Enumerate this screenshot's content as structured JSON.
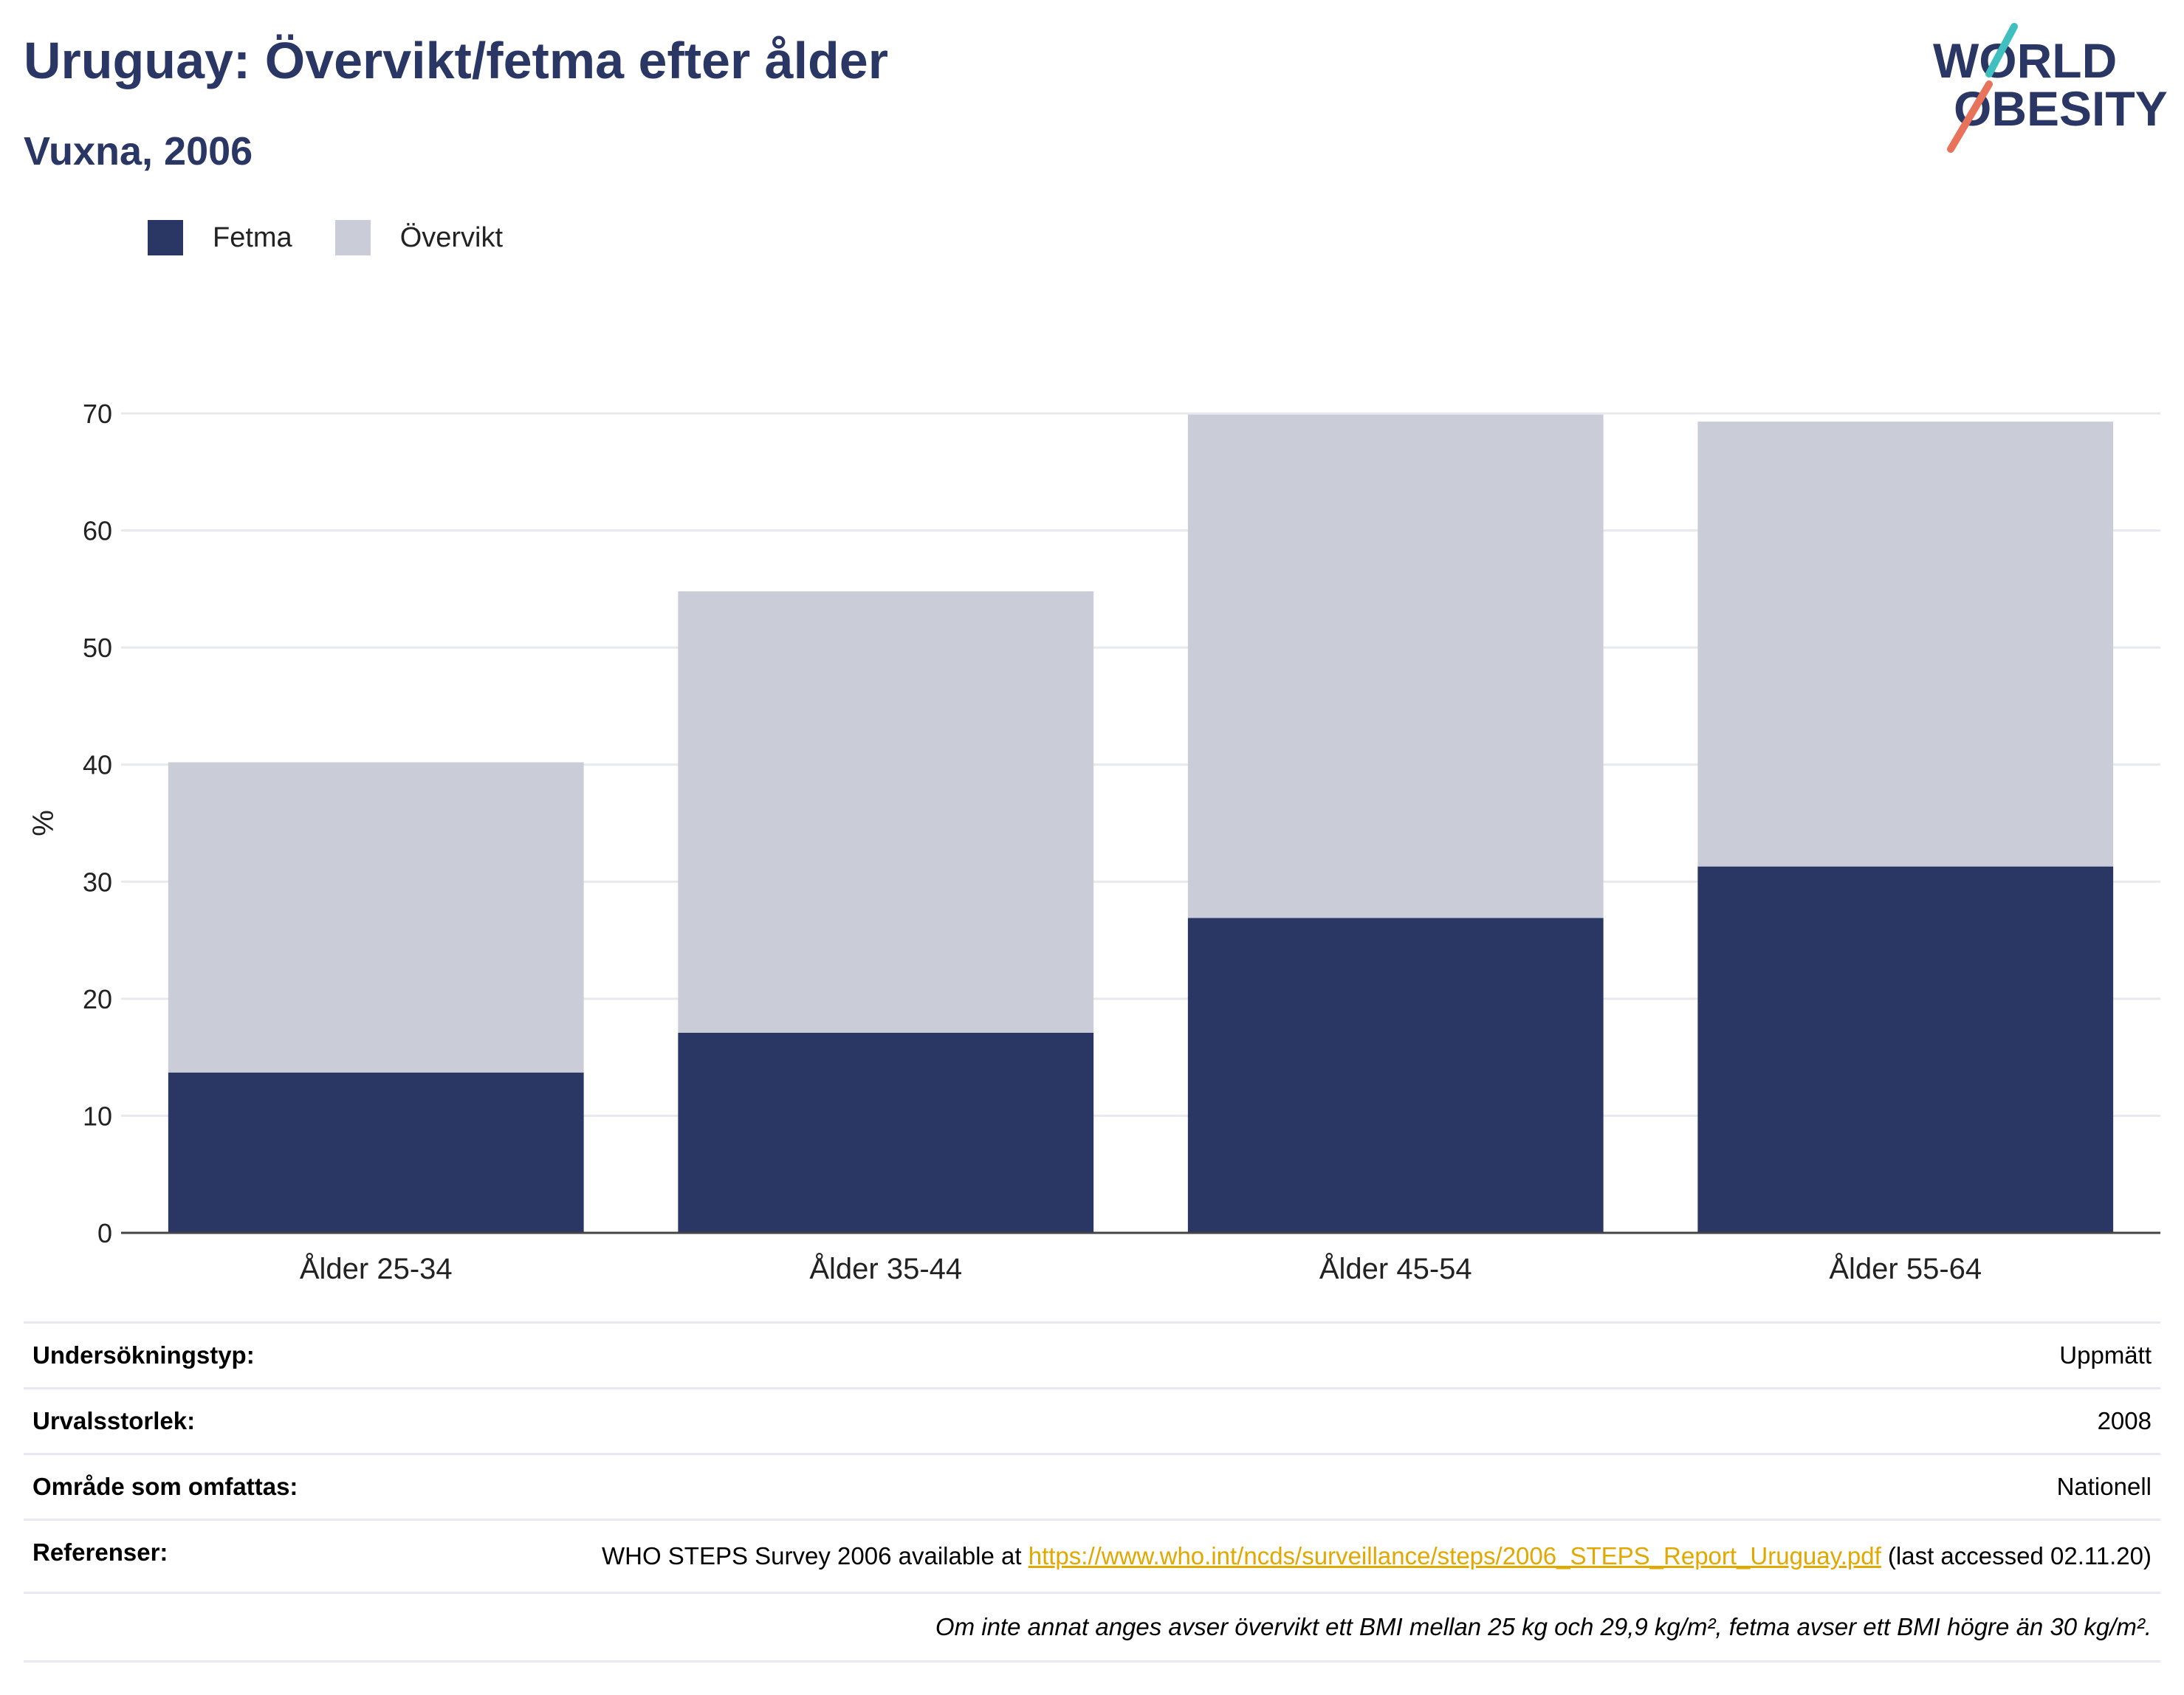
{
  "header": {
    "title": "Uruguay: Övervikt/fetma efter ålder",
    "subtitle": "Vuxna, 2006"
  },
  "logo": {
    "line1": "WORLD",
    "line2": "OBESITY"
  },
  "legend": [
    {
      "label": "Fetma",
      "color": "#2a3764"
    },
    {
      "label": "Övervikt",
      "color": "#cacdd8"
    }
  ],
  "chart_data": {
    "type": "bar",
    "stacked": true,
    "categories": [
      "Ålder 25-34",
      "Ålder 35-44",
      "Ålder 45-54",
      "Ålder 55-64"
    ],
    "series": [
      {
        "name": "Fetma",
        "color": "#2a3764",
        "values": [
          13.7,
          17.1,
          26.9,
          31.3
        ]
      },
      {
        "name": "Övervikt",
        "color": "#cacdd8",
        "values": [
          26.5,
          37.7,
          43.0,
          38.0
        ]
      }
    ],
    "ylabel": "%",
    "ylim": [
      0,
      70
    ],
    "yticks": [
      0,
      10,
      20,
      30,
      40,
      50,
      60,
      70
    ],
    "grid": true,
    "legend_position": "top-left"
  },
  "info_table": {
    "rows": [
      {
        "label": "Undersökningstyp:",
        "value": "Uppmätt"
      },
      {
        "label": "Urvalsstorlek:",
        "value": "2008"
      },
      {
        "label": "Område som omfattas:",
        "value": "Nationell"
      }
    ],
    "references": {
      "label": "Referenser:",
      "prefix": "WHO STEPS Survey 2006 available at ",
      "link": "https://www.who.int/ncds/surveillance/steps/2006_STEPS_Report_Uruguay.pdf",
      "suffix": " (last accessed 02.11.20)"
    },
    "footnote": "Om inte annat anges avser övervikt ett BMI mellan 25 kg och 29,9 kg/m², fetma avser ett BMI högre än 30 kg/m²."
  }
}
